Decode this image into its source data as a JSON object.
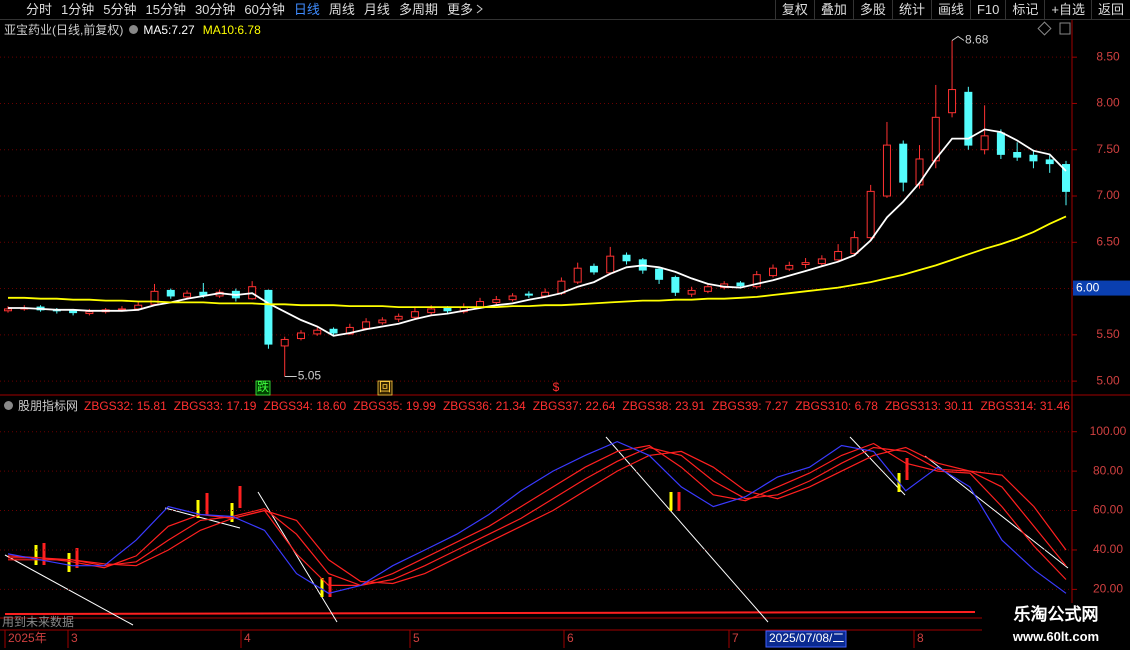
{
  "toolbar": {
    "periods": [
      "分时",
      "1分钟",
      "5分钟",
      "15分钟",
      "30分钟",
      "60分钟",
      "日线",
      "周线",
      "月线",
      "多周期",
      "更多"
    ],
    "active": "日线",
    "actions": [
      "复权",
      "叠加",
      "多股",
      "统计",
      "画线",
      "F10",
      "标记",
      "+自选",
      "返回"
    ]
  },
  "chart_data": [
    {
      "type": "candlestick",
      "title": "亚宝药业(日线,前复权)",
      "open": [
        5.76,
        5.78,
        5.8,
        5.77,
        5.76,
        5.73,
        5.75,
        5.77,
        5.78,
        5.83,
        5.98,
        5.91,
        5.96,
        5.92,
        5.97,
        5.89,
        5.98,
        5.38,
        5.46,
        5.51,
        5.56,
        5.51,
        5.57,
        5.63,
        5.67,
        5.69,
        5.74,
        5.79,
        5.75,
        5.8,
        5.85,
        5.88,
        5.94,
        5.92,
        5.95,
        6.07,
        6.24,
        6.17,
        6.36,
        6.31,
        6.21,
        6.12,
        5.94,
        5.97,
        6.01,
        6.06,
        6.02,
        6.14,
        6.21,
        6.26,
        6.27,
        6.31,
        6.38,
        6.55,
        7.0,
        7.56,
        7.12,
        7.38,
        7.9,
        8.12,
        7.5,
        7.68,
        7.47,
        7.44,
        7.39,
        7.34
      ],
      "high": [
        5.81,
        5.82,
        5.82,
        5.79,
        5.78,
        5.78,
        5.79,
        5.81,
        5.86,
        6.05,
        6.0,
        5.98,
        6.06,
        5.99,
        6.0,
        6.08,
        5.99,
        5.48,
        5.55,
        5.58,
        5.58,
        5.62,
        5.68,
        5.69,
        5.73,
        5.8,
        5.82,
        5.81,
        5.84,
        5.9,
        5.92,
        5.95,
        5.97,
        6.0,
        6.12,
        6.28,
        6.27,
        6.45,
        6.39,
        6.33,
        6.23,
        6.14,
        6.02,
        6.05,
        6.08,
        6.08,
        6.19,
        6.26,
        6.29,
        6.33,
        6.36,
        6.48,
        6.62,
        7.12,
        7.8,
        7.6,
        7.55,
        8.2,
        8.68,
        8.18,
        7.98,
        7.72,
        7.58,
        7.5,
        7.45,
        7.38
      ],
      "low": [
        5.74,
        5.76,
        5.75,
        5.73,
        5.71,
        5.71,
        5.73,
        5.75,
        5.76,
        5.82,
        5.89,
        5.88,
        5.9,
        5.9,
        5.86,
        5.88,
        5.35,
        5.05,
        5.44,
        5.49,
        5.49,
        5.5,
        5.55,
        5.61,
        5.64,
        5.67,
        5.72,
        5.73,
        5.73,
        5.78,
        5.83,
        5.86,
        5.9,
        5.9,
        5.93,
        6.05,
        6.15,
        6.15,
        6.26,
        6.16,
        6.05,
        5.92,
        5.91,
        5.95,
        5.99,
        6.0,
        6.0,
        6.12,
        6.19,
        6.22,
        6.24,
        6.29,
        6.36,
        6.52,
        6.98,
        7.05,
        7.08,
        7.3,
        7.85,
        7.5,
        7.45,
        7.4,
        7.38,
        7.3,
        7.25,
        6.9
      ],
      "close": [
        5.78,
        5.79,
        5.77,
        5.76,
        5.74,
        5.75,
        5.77,
        5.78,
        5.82,
        5.97,
        5.92,
        5.95,
        5.93,
        5.96,
        5.9,
        6.02,
        5.4,
        5.45,
        5.52,
        5.55,
        5.52,
        5.58,
        5.64,
        5.66,
        5.7,
        5.75,
        5.78,
        5.76,
        5.8,
        5.86,
        5.88,
        5.92,
        5.93,
        5.96,
        6.08,
        6.22,
        6.18,
        6.35,
        6.3,
        6.2,
        6.1,
        5.96,
        5.98,
        6.02,
        6.05,
        6.03,
        6.15,
        6.22,
        6.25,
        6.28,
        6.32,
        6.4,
        6.55,
        7.05,
        7.55,
        7.15,
        7.4,
        7.85,
        8.15,
        7.55,
        7.65,
        7.45,
        7.42,
        7.38,
        7.35,
        7.05
      ],
      "up_color": "#ff3232",
      "down_color": "#54fcfc",
      "series": [
        {
          "name": "MA5",
          "color": "#ffffff",
          "values": [
            5.79,
            5.79,
            5.78,
            5.77,
            5.77,
            5.76,
            5.76,
            5.76,
            5.77,
            5.82,
            5.85,
            5.89,
            5.92,
            5.95,
            5.93,
            5.95,
            5.84,
            5.75,
            5.66,
            5.59,
            5.49,
            5.52,
            5.56,
            5.59,
            5.62,
            5.67,
            5.71,
            5.73,
            5.76,
            5.79,
            5.82,
            5.84,
            5.88,
            5.91,
            5.95,
            6.02,
            6.07,
            6.16,
            6.23,
            6.25,
            6.23,
            6.18,
            6.11,
            6.05,
            6.02,
            6.01,
            6.05,
            6.09,
            6.14,
            6.19,
            6.24,
            6.29,
            6.36,
            6.52,
            6.77,
            6.94,
            7.14,
            7.4,
            7.62,
            7.62,
            7.72,
            7.69,
            7.6,
            7.49,
            7.45,
            7.27
          ]
        },
        {
          "name": "MA10",
          "color": "#ffff00",
          "values": [
            5.9,
            5.9,
            5.89,
            5.89,
            5.88,
            5.88,
            5.87,
            5.87,
            5.86,
            5.86,
            5.85,
            5.85,
            5.85,
            5.84,
            5.84,
            5.84,
            5.83,
            5.83,
            5.82,
            5.82,
            5.82,
            5.81,
            5.81,
            5.81,
            5.8,
            5.8,
            5.8,
            5.8,
            5.8,
            5.8,
            5.8,
            5.81,
            5.81,
            5.82,
            5.82,
            5.83,
            5.84,
            5.85,
            5.86,
            5.87,
            5.87,
            5.88,
            5.88,
            5.89,
            5.89,
            5.9,
            5.91,
            5.93,
            5.95,
            5.97,
            5.99,
            6.01,
            6.04,
            6.07,
            6.11,
            6.15,
            6.2,
            6.25,
            6.31,
            6.37,
            6.43,
            6.48,
            6.54,
            6.61,
            6.7,
            6.78
          ]
        }
      ],
      "ylim": [
        4.85,
        8.88
      ],
      "yticks": [
        {
          "value": 5,
          "label": "5.00"
        },
        {
          "value": 5.5,
          "label": "5.50"
        },
        {
          "value": 6,
          "label": "6.00"
        },
        {
          "value": 6.5,
          "label": "6.50"
        },
        {
          "value": 7,
          "label": "7.00"
        },
        {
          "value": 7.5,
          "label": "7.50"
        },
        {
          "value": 8,
          "label": "8.00"
        },
        {
          "value": 8.5,
          "label": "8.50"
        }
      ],
      "grid": true,
      "price_marker": {
        "value": 6,
        "label": "6.00"
      },
      "markers": [
        "跌",
        "回",
        "$"
      ]
    },
    {
      "type": "line",
      "title": "股朋指标网",
      "readouts": [
        {
          "name": "ZBGS32",
          "value": 15.81
        },
        {
          "name": "ZBGS33",
          "value": 17.19
        },
        {
          "name": "ZBGS34",
          "value": 18.6,
          "label": "18.60"
        },
        {
          "name": "ZBGS35",
          "value": 19.99
        },
        {
          "name": "ZBGS36",
          "value": 21.34
        },
        {
          "name": "ZBGS37",
          "value": 22.64
        },
        {
          "name": "ZBGS38",
          "value": 23.91
        },
        {
          "name": "ZBGS39",
          "value": 7.27
        },
        {
          "name": "ZBGS310",
          "value": 6.78
        },
        {
          "name": "ZBGS313",
          "value": 30.11
        },
        {
          "name": "ZBGS314",
          "value": 31.46
        }
      ],
      "series": [
        {
          "color": "#ff2020",
          "values": [
            35,
            35,
            35,
            33,
            32,
            40,
            50,
            56,
            60,
            55,
            35,
            24,
            23,
            28,
            36,
            44,
            52,
            60,
            70,
            80,
            88,
            90,
            82,
            70,
            66,
            72,
            80,
            88,
            92,
            84,
            80,
            78,
            62,
            40
          ]
        },
        {
          "color": "#ff2020",
          "values": [
            36,
            36,
            35,
            32,
            34,
            45,
            55,
            57,
            61,
            48,
            28,
            22,
            25,
            32,
            40,
            48,
            56,
            66,
            76,
            85,
            92,
            88,
            75,
            66,
            68,
            75,
            84,
            92,
            90,
            81,
            80,
            72,
            52,
            32
          ]
        },
        {
          "color": "#ff2020",
          "values": [
            37,
            36,
            34,
            31,
            37,
            52,
            58,
            56,
            60,
            38,
            22,
            22,
            28,
            36,
            44,
            52,
            62,
            72,
            82,
            90,
            93,
            82,
            68,
            65,
            72,
            79,
            88,
            94,
            84,
            80,
            79,
            62,
            42,
            25
          ]
        },
        {
          "color": "#3a3aff",
          "values": [
            38,
            35,
            32,
            32,
            45,
            62,
            58,
            57,
            50,
            28,
            18,
            22,
            32,
            40,
            48,
            58,
            70,
            80,
            88,
            95,
            88,
            72,
            62,
            67,
            77,
            82,
            93,
            90,
            70,
            82,
            72,
            45,
            30,
            18
          ]
        }
      ],
      "ylim": [
        7,
        110
      ],
      "yticks": [
        {
          "value": 20,
          "label": "20.00"
        },
        {
          "value": 40,
          "label": "40.00"
        },
        {
          "value": 60,
          "label": "60.00"
        },
        {
          "value": 80,
          "label": "80.00"
        },
        {
          "value": 100,
          "label": "100.00"
        }
      ],
      "grid": true,
      "warning": "用到未来数据",
      "x_labels": [
        "2025年",
        "3",
        "4",
        "5",
        "6",
        "7",
        "8"
      ],
      "cursor_date": "2025/07/08/二"
    }
  ],
  "watermark": {
    "name": "乐淘公式网",
    "url": "www.60lt.com"
  }
}
